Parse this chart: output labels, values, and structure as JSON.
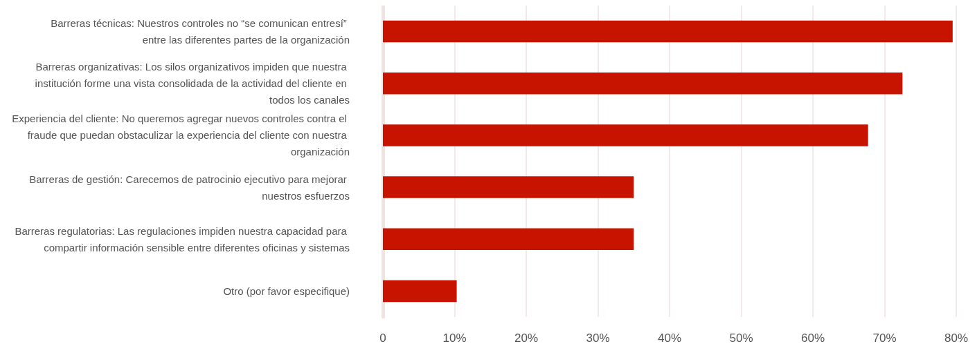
{
  "chart_data": {
    "type": "bar",
    "orientation": "horizontal",
    "categories": [
      "Barreras técnicas: Nuestros controles no “se comunican entresí” entre las diferentes partes de la organización",
      "Barreras organizativas: Los silos organizativos impiden que nuestra institución forme una vista consolidada de la actividad del cliente en todos los canales",
      "Experiencia del cliente: No queremos agregar nuevos controles contra el fraude que puedan obstaculizar la experiencia del cliente con nuestra organización",
      "Barreras de gestión: Carecemos de patrocinio ejecutivo para mejorar nuestros esfuerzos",
      "Barreras regulatorias: Las regulaciones impiden nuestra capacidad para compartir información sensible entre diferentes oficinas y sistemas",
      "Otro (por favor especifique)"
    ],
    "values": [
      79.5,
      72.5,
      67.7,
      35,
      35,
      10.3
    ],
    "color": "#c71400",
    "xlim": [
      0,
      80
    ],
    "xticks": [
      0,
      {
        "value": 10,
        "label": "10%"
      },
      {
        "value": 20,
        "label": "20%"
      },
      {
        "value": 30,
        "label": "30%"
      },
      {
        "value": 40,
        "label": "40%"
      },
      {
        "value": 50,
        "label": "50%"
      },
      {
        "value": 60,
        "label": "60%"
      },
      {
        "value": 70,
        "label": "70%"
      },
      {
        "value": 80,
        "label": "80%"
      }
    ],
    "grid": "x"
  }
}
